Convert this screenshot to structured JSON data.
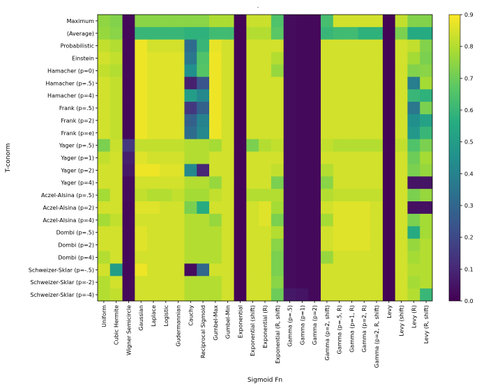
{
  "chart_data": {
    "type": "heatmap",
    "title": "",
    "xlabel": "Sigmoid Fn",
    "ylabel": "T-conorm",
    "x_categories": [
      "Uniform",
      "Cubic Hermite",
      "Wigner Semicircle",
      "Gaussian",
      "Laplace",
      "Logistic",
      "Gudermannian",
      "Cauchy",
      "Reciprocal Sigmoid",
      "Gumbel-Max",
      "Gumbel-Min",
      "Exponential",
      "Exponential (shift)",
      "Exponential (R)",
      "Exponential (R, shift)",
      "Gamma (p=.5)",
      "Gamma (p=1)",
      "Gamma (p=2)",
      "Gamma (p=2, shift)",
      "Gamma (p=.5, R)",
      "Gamma (p=1, R)",
      "Gamma (p=2, R)",
      "Gamma (p=2, R, shift)",
      "Levy",
      "Levy (shift)",
      "Levy (R)",
      "Levy (R, shift)"
    ],
    "y_categories": [
      "Maximum",
      "(Average)",
      "Probabilistic",
      "Einstein",
      "Hamacher (p=0)",
      "Hamacher (p=.5)",
      "Hamacher (p=4)",
      "Frank (p=.5)",
      "Frank (p=2)",
      "Frank (p=e)",
      "Yager (p=.5)",
      "Yager (p=1)",
      "Yager (p=2)",
      "Yager (p=4)",
      "Aczel-Alsina (p=.5)",
      "Aczel-Alsina (p=2)",
      "Aczel-Alsina (p=4)",
      "Dombi (p=.5)",
      "Dombi (p=2)",
      "Dombi (p=4)",
      "Schweizer-Sklar (p=-.5)",
      "Schweizer-Sklar (p=-2)",
      "Schweizer-Sklar (p=-4)"
    ],
    "values": [
      [
        0.75,
        0.73,
        0.02,
        0.74,
        0.74,
        0.74,
        0.74,
        0.74,
        0.74,
        0.79,
        0.79,
        0.01,
        0.83,
        0.83,
        0.65,
        0.03,
        0.02,
        0.02,
        0.63,
        0.84,
        0.84,
        0.84,
        0.84,
        0.01,
        0.82,
        0.73,
        0.73
      ],
      [
        0.76,
        0.74,
        0.02,
        0.6,
        0.6,
        0.6,
        0.6,
        0.58,
        0.58,
        0.62,
        0.62,
        0.01,
        0.8,
        0.8,
        0.67,
        0.03,
        0.02,
        0.02,
        0.6,
        0.62,
        0.62,
        0.58,
        0.58,
        0.01,
        0.72,
        0.55,
        0.55
      ],
      [
        0.82,
        0.8,
        0.02,
        0.88,
        0.84,
        0.84,
        0.84,
        0.32,
        0.6,
        0.87,
        0.84,
        0.01,
        0.84,
        0.84,
        0.84,
        0.03,
        0.02,
        0.02,
        0.84,
        0.84,
        0.84,
        0.84,
        0.84,
        0.01,
        0.84,
        0.82,
        0.73
      ],
      [
        0.84,
        0.82,
        0.02,
        0.88,
        0.86,
        0.86,
        0.86,
        0.36,
        0.65,
        0.88,
        0.84,
        0.01,
        0.84,
        0.84,
        0.8,
        0.03,
        0.02,
        0.02,
        0.84,
        0.84,
        0.84,
        0.84,
        0.84,
        0.01,
        0.84,
        0.78,
        0.72
      ],
      [
        0.82,
        0.8,
        0.02,
        0.88,
        0.86,
        0.86,
        0.86,
        0.45,
        0.66,
        0.88,
        0.84,
        0.01,
        0.84,
        0.84,
        0.76,
        0.03,
        0.02,
        0.02,
        0.84,
        0.84,
        0.84,
        0.84,
        0.84,
        0.01,
        0.84,
        0.73,
        0.74
      ],
      [
        0.84,
        0.82,
        0.02,
        0.88,
        0.86,
        0.86,
        0.86,
        0.08,
        0.24,
        0.88,
        0.84,
        0.01,
        0.84,
        0.84,
        0.84,
        0.03,
        0.02,
        0.02,
        0.84,
        0.84,
        0.84,
        0.84,
        0.84,
        0.01,
        0.84,
        0.38,
        0.78
      ],
      [
        0.84,
        0.82,
        0.02,
        0.88,
        0.86,
        0.86,
        0.86,
        0.5,
        0.42,
        0.88,
        0.84,
        0.01,
        0.84,
        0.84,
        0.84,
        0.03,
        0.02,
        0.02,
        0.84,
        0.84,
        0.84,
        0.84,
        0.84,
        0.01,
        0.84,
        0.6,
        0.58
      ],
      [
        0.84,
        0.82,
        0.02,
        0.88,
        0.86,
        0.86,
        0.86,
        0.15,
        0.28,
        0.88,
        0.84,
        0.01,
        0.84,
        0.84,
        0.84,
        0.03,
        0.02,
        0.02,
        0.84,
        0.84,
        0.84,
        0.84,
        0.84,
        0.01,
        0.84,
        0.36,
        0.72
      ],
      [
        0.84,
        0.82,
        0.02,
        0.88,
        0.86,
        0.86,
        0.86,
        0.28,
        0.4,
        0.88,
        0.84,
        0.01,
        0.84,
        0.84,
        0.84,
        0.03,
        0.02,
        0.02,
        0.84,
        0.84,
        0.84,
        0.84,
        0.84,
        0.01,
        0.84,
        0.45,
        0.52
      ],
      [
        0.84,
        0.82,
        0.02,
        0.88,
        0.86,
        0.86,
        0.86,
        0.32,
        0.42,
        0.88,
        0.84,
        0.01,
        0.84,
        0.84,
        0.84,
        0.03,
        0.02,
        0.02,
        0.84,
        0.84,
        0.84,
        0.84,
        0.84,
        0.01,
        0.84,
        0.48,
        0.6
      ],
      [
        0.72,
        0.83,
        0.15,
        0.82,
        0.82,
        0.82,
        0.82,
        0.8,
        0.8,
        0.78,
        0.84,
        0.01,
        0.72,
        0.8,
        0.82,
        0.03,
        0.02,
        0.02,
        0.82,
        0.8,
        0.8,
        0.8,
        0.8,
        0.01,
        0.82,
        0.65,
        0.72
      ],
      [
        0.82,
        0.84,
        0.08,
        0.86,
        0.84,
        0.84,
        0.84,
        0.8,
        0.8,
        0.84,
        0.84,
        0.01,
        0.84,
        0.84,
        0.84,
        0.03,
        0.02,
        0.02,
        0.84,
        0.84,
        0.84,
        0.84,
        0.84,
        0.01,
        0.84,
        0.7,
        0.78
      ],
      [
        0.84,
        0.84,
        0.06,
        0.88,
        0.88,
        0.86,
        0.86,
        0.42,
        0.1,
        0.84,
        0.84,
        0.01,
        0.84,
        0.84,
        0.82,
        0.03,
        0.02,
        0.02,
        0.8,
        0.84,
        0.84,
        0.84,
        0.84,
        0.01,
        0.84,
        0.72,
        0.76
      ],
      [
        0.84,
        0.84,
        0.03,
        0.84,
        0.84,
        0.84,
        0.84,
        0.8,
        0.8,
        0.76,
        0.84,
        0.01,
        0.84,
        0.84,
        0.72,
        0.03,
        0.02,
        0.02,
        0.74,
        0.84,
        0.84,
        0.84,
        0.84,
        0.01,
        0.84,
        0.05,
        0.05
      ],
      [
        0.78,
        0.84,
        0.03,
        0.82,
        0.8,
        0.8,
        0.82,
        0.78,
        0.78,
        0.82,
        0.84,
        0.01,
        0.8,
        0.8,
        0.8,
        0.03,
        0.02,
        0.02,
        0.8,
        0.82,
        0.82,
        0.82,
        0.82,
        0.01,
        0.84,
        0.72,
        0.76
      ],
      [
        0.84,
        0.84,
        0.02,
        0.86,
        0.86,
        0.84,
        0.84,
        0.72,
        0.56,
        0.84,
        0.84,
        0.01,
        0.84,
        0.86,
        0.78,
        0.03,
        0.02,
        0.02,
        0.84,
        0.86,
        0.86,
        0.86,
        0.84,
        0.01,
        0.84,
        0.04,
        0.04
      ],
      [
        0.78,
        0.82,
        0.02,
        0.84,
        0.84,
        0.84,
        0.84,
        0.8,
        0.8,
        0.76,
        0.84,
        0.01,
        0.84,
        0.86,
        0.72,
        0.03,
        0.02,
        0.02,
        0.78,
        0.86,
        0.86,
        0.86,
        0.84,
        0.01,
        0.84,
        0.72,
        0.78
      ],
      [
        0.84,
        0.84,
        0.02,
        0.86,
        0.84,
        0.84,
        0.84,
        0.8,
        0.8,
        0.8,
        0.84,
        0.01,
        0.84,
        0.84,
        0.8,
        0.03,
        0.02,
        0.02,
        0.84,
        0.86,
        0.86,
        0.86,
        0.84,
        0.01,
        0.84,
        0.55,
        0.78
      ],
      [
        0.84,
        0.84,
        0.02,
        0.86,
        0.84,
        0.84,
        0.84,
        0.8,
        0.8,
        0.8,
        0.84,
        0.01,
        0.84,
        0.84,
        0.74,
        0.03,
        0.02,
        0.02,
        0.84,
        0.86,
        0.86,
        0.86,
        0.84,
        0.01,
        0.84,
        0.76,
        0.8
      ],
      [
        0.8,
        0.84,
        0.02,
        0.84,
        0.84,
        0.84,
        0.84,
        0.8,
        0.8,
        0.8,
        0.84,
        0.01,
        0.84,
        0.84,
        0.72,
        0.03,
        0.02,
        0.02,
        0.76,
        0.84,
        0.84,
        0.84,
        0.84,
        0.01,
        0.84,
        0.78,
        0.8
      ],
      [
        0.84,
        0.5,
        0.02,
        0.88,
        0.84,
        0.84,
        0.84,
        0.03,
        0.3,
        0.84,
        0.84,
        0.01,
        0.84,
        0.84,
        0.72,
        0.03,
        0.02,
        0.02,
        0.84,
        0.84,
        0.84,
        0.84,
        0.84,
        0.01,
        0.84,
        0.8,
        0.8
      ],
      [
        0.8,
        0.84,
        0.02,
        0.84,
        0.84,
        0.84,
        0.84,
        0.8,
        0.8,
        0.8,
        0.84,
        0.01,
        0.84,
        0.84,
        0.74,
        0.03,
        0.02,
        0.02,
        0.84,
        0.84,
        0.84,
        0.84,
        0.84,
        0.01,
        0.84,
        0.78,
        0.8
      ],
      [
        0.8,
        0.82,
        0.02,
        0.84,
        0.84,
        0.84,
        0.84,
        0.8,
        0.8,
        0.8,
        0.84,
        0.01,
        0.84,
        0.84,
        0.7,
        0.06,
        0.05,
        0.02,
        0.84,
        0.84,
        0.84,
        0.84,
        0.84,
        0.01,
        0.84,
        0.8,
        0.6
      ]
    ],
    "colorbar": {
      "colormap": "viridis",
      "vmin": 0,
      "vmax": 0.9,
      "ticks": [
        "0.0",
        "0.1",
        "0.2",
        "0.3",
        "0.4",
        "0.5",
        "0.6",
        "0.7",
        "0.8",
        "0.9"
      ]
    },
    "grid": false
  },
  "note": "."
}
